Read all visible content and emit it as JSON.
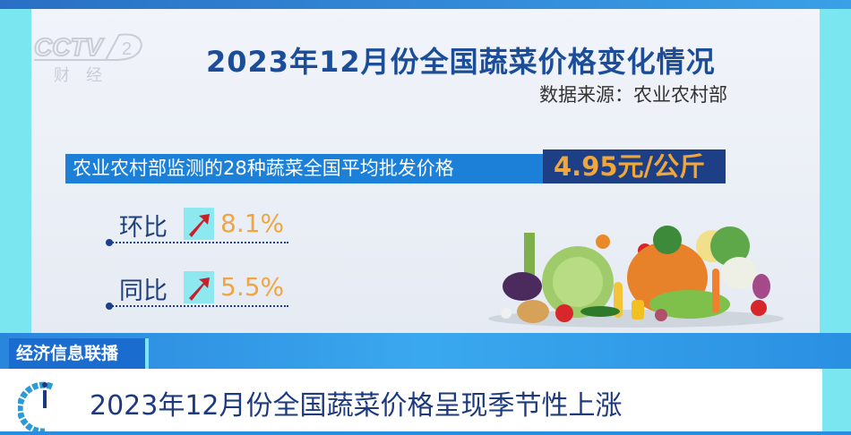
{
  "channel_logo": {
    "text": "CCTV 2",
    "sub": "财经"
  },
  "infographic": {
    "title": "2023年12月份全国蔬菜价格变化情况",
    "source": "数据来源：农业农村部",
    "price_label": "农业农村部监测的28种蔬菜全国平均批发价格",
    "price_value": "4.95元/公斤",
    "mom": {
      "label": "环比",
      "value": "8.1%",
      "trend": "up-arrow-icon"
    },
    "yoy": {
      "label": "同比",
      "value": "5.5%",
      "trend": "up-arrow-icon"
    }
  },
  "program_tag": "经济信息联播",
  "headline": "2023年12月份全国蔬菜价格呈现季节性上涨",
  "colors": {
    "title": "#1b4d98",
    "accent_bar": "#1c80d8",
    "value_box": "#1d3f86",
    "value_text": "#f0a63a",
    "side_bar": "#7ae6f0"
  }
}
